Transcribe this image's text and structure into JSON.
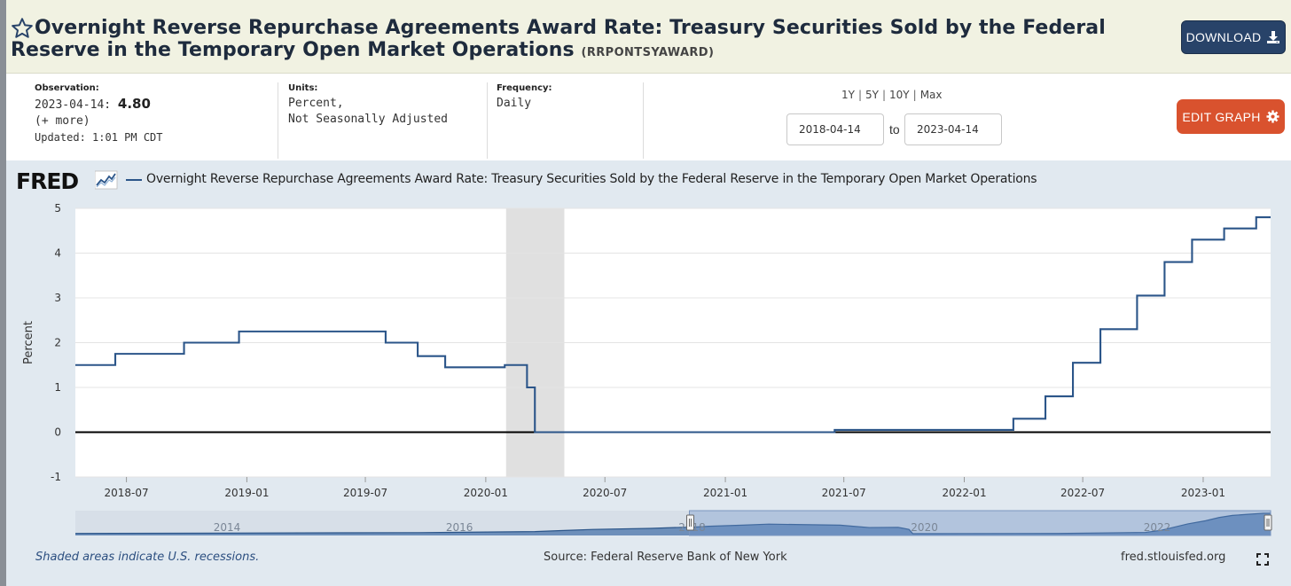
{
  "header": {
    "title": "Overnight Reverse Repurchase Agreements Award Rate: Treasury Securities Sold by the Federal Reserve in the Temporary Open Market Operations",
    "series_id": "(RRPONTSYAWARD)",
    "download_label": "DOWNLOAD"
  },
  "observation": {
    "label": "Observation:",
    "date": "2023-04-14:",
    "value": "4.80",
    "more": "(+ more)",
    "updated": "Updated: 1:01 PM CDT"
  },
  "units": {
    "label": "Units:",
    "line1": "Percent,",
    "line2": "Not Seasonally Adjusted"
  },
  "frequency": {
    "label": "Frequency:",
    "value": "Daily"
  },
  "ranges": [
    "1Y",
    "5Y",
    "10Y",
    "Max"
  ],
  "date_range": {
    "start": "2018-04-14",
    "to_label": "to",
    "end": "2023-04-14"
  },
  "edit_graph_label": "EDIT GRAPH",
  "graph": {
    "logo_text": "FRED",
    "legend_label": "Overnight Reverse Repurchase Agreements Award Rate: Treasury Securities Sold by the Federal Reserve in the Temporary Open Market Operations",
    "footer_recession": "Shaded areas indicate U.S. recessions.",
    "footer_source": "Source: Federal Reserve Bank of New York",
    "footer_site": "fred.stlouisfed.org"
  },
  "colors": {
    "header_bg": "#f1f2e2",
    "download_bg": "#284369",
    "edit_graph_bg": "#d9522e",
    "series": "#2b5589",
    "panel_bg": "#e1e9f0",
    "recession": "#e0e0e0"
  },
  "icons": {
    "favorite": "star-icon",
    "download": "download-icon",
    "edit": "gear-icon",
    "logo": "chart-icon",
    "fullscreen": "expand-icon"
  },
  "chart_data": {
    "type": "line",
    "title": "",
    "xlabel": "",
    "ylabel": "Percent",
    "ylim": [
      -1,
      5
    ],
    "yticks": [
      -1,
      0,
      1,
      2,
      3,
      4,
      5
    ],
    "xlim": [
      "2018-04-14",
      "2023-04-14"
    ],
    "xticks": [
      "2018-07",
      "2019-01",
      "2019-07",
      "2020-01",
      "2020-07",
      "2021-01",
      "2021-07",
      "2022-01",
      "2022-07",
      "2023-01"
    ],
    "grid": true,
    "legend": "top",
    "recessions": [
      [
        "2020-02-01",
        "2020-04-30"
      ]
    ],
    "series": [
      {
        "name": "Overnight Reverse Repurchase Agreements Award Rate: Treasury Securities Sold by the Federal Reserve in the Temporary Open Market Operations",
        "steps": [
          [
            "2018-04-14",
            1.5
          ],
          [
            "2018-06-14",
            1.75
          ],
          [
            "2018-09-27",
            2.0
          ],
          [
            "2018-12-20",
            2.25
          ],
          [
            "2019-08-01",
            2.0
          ],
          [
            "2019-09-19",
            1.7
          ],
          [
            "2019-10-31",
            1.45
          ],
          [
            "2020-01-30",
            1.5
          ],
          [
            "2020-03-04",
            1.0
          ],
          [
            "2020-03-16",
            0.0
          ],
          [
            "2021-06-17",
            0.05
          ],
          [
            "2022-03-17",
            0.3
          ],
          [
            "2022-05-05",
            0.8
          ],
          [
            "2022-06-16",
            1.55
          ],
          [
            "2022-07-28",
            2.3
          ],
          [
            "2022-09-22",
            3.05
          ],
          [
            "2022-11-03",
            3.8
          ],
          [
            "2022-12-15",
            4.3
          ],
          [
            "2023-02-02",
            4.55
          ],
          [
            "2023-03-23",
            4.8
          ],
          [
            "2023-04-14",
            4.8
          ]
        ]
      }
    ],
    "navigator": {
      "labels": [
        "2014",
        "2016",
        "2018",
        "2020",
        "2022"
      ],
      "selected_range": [
        "2018-04-14",
        "2023-04-14"
      ]
    }
  }
}
